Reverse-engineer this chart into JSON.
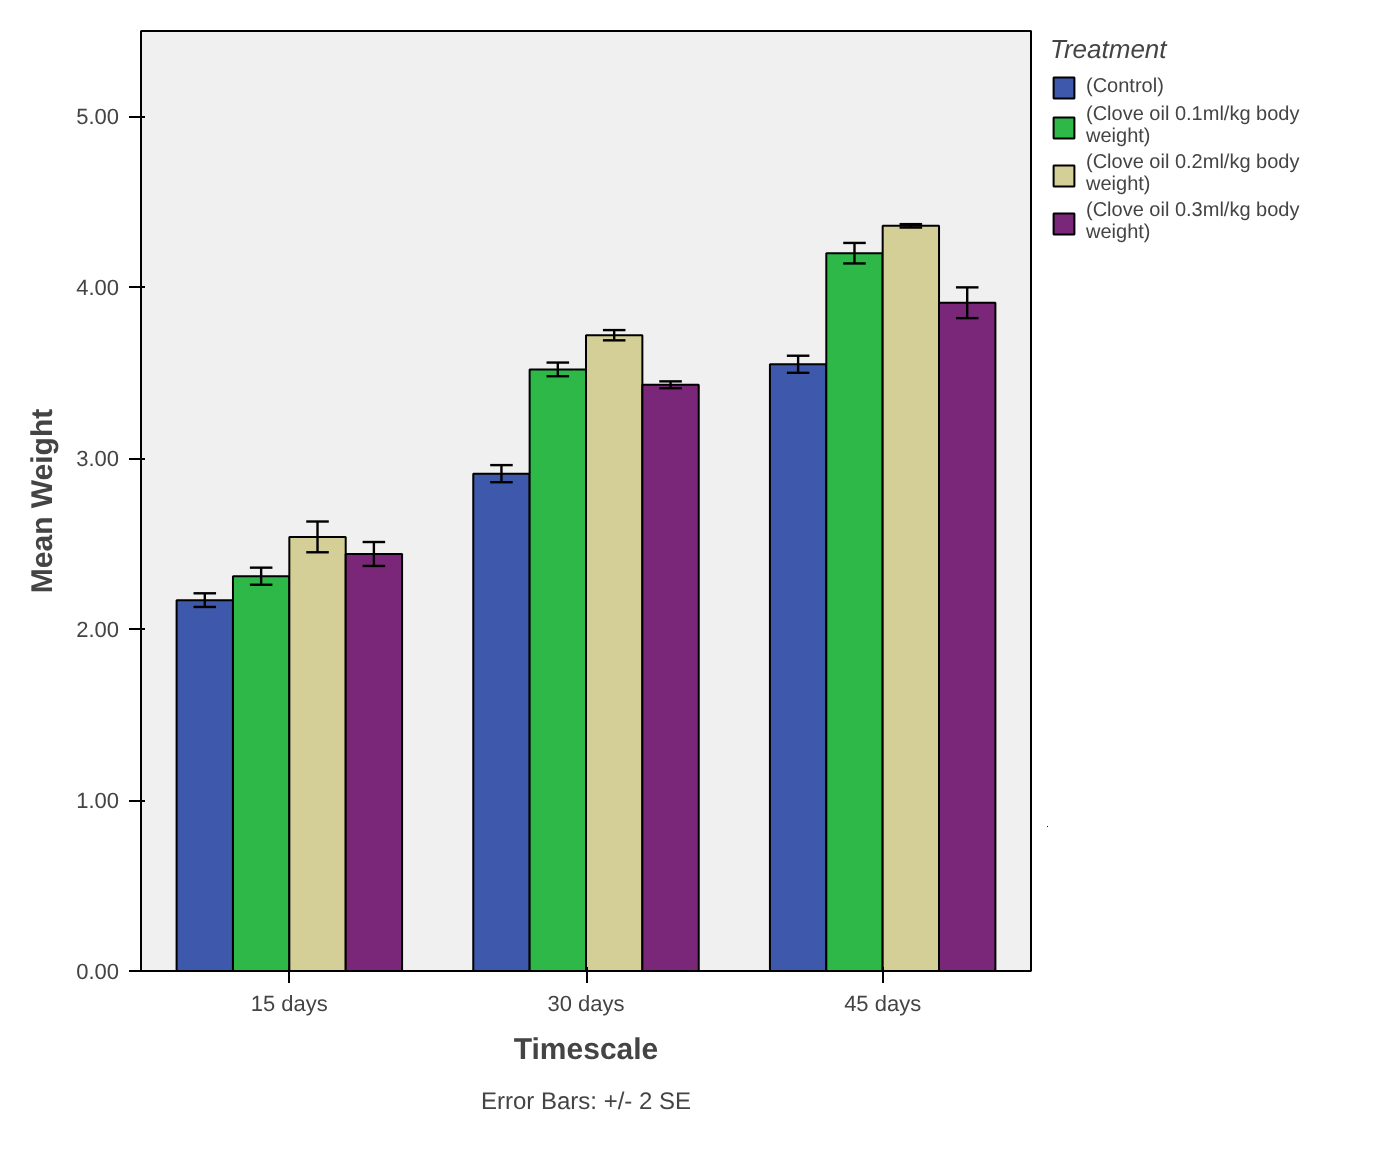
{
  "chart_data": {
    "type": "bar",
    "xlabel": "Timescale",
    "ylabel": "Mean Weight",
    "legend_title": "Treatment",
    "categories": [
      "15 days",
      "30 days",
      "45 days"
    ],
    "series": [
      {
        "name": "(Control)",
        "color": "#3e58ac",
        "values": [
          2.17,
          2.91,
          3.55
        ],
        "errors": [
          0.04,
          0.05,
          0.05
        ]
      },
      {
        "name": "(Clove oil 0.1ml/kg body weight)",
        "color": "#2eb848",
        "values": [
          2.31,
          3.52,
          4.2
        ],
        "errors": [
          0.05,
          0.04,
          0.06
        ]
      },
      {
        "name": "(Clove oil 0.2ml/kg body weight)",
        "color": "#d4cf96",
        "values": [
          2.54,
          3.72,
          4.36
        ],
        "errors": [
          0.09,
          0.03,
          0.01
        ]
      },
      {
        "name": "(Clove oil 0.3ml/kg body weight)",
        "color": "#7b2779",
        "values": [
          2.44,
          3.43,
          3.91
        ],
        "errors": [
          0.07,
          0.02,
          0.09
        ]
      }
    ],
    "ylim": [
      0,
      5.5
    ],
    "yticks": [
      {
        "value": 0,
        "label": "0.00"
      },
      {
        "value": 1,
        "label": "1.00"
      },
      {
        "value": 2,
        "label": "2.00"
      },
      {
        "value": 3,
        "label": "3.00"
      },
      {
        "value": 4,
        "label": "4.00"
      },
      {
        "value": 5,
        "label": "5.00"
      }
    ],
    "grid": false,
    "legend": "right",
    "annotations": [
      "Error Bars: +/- 2 SE"
    ]
  }
}
